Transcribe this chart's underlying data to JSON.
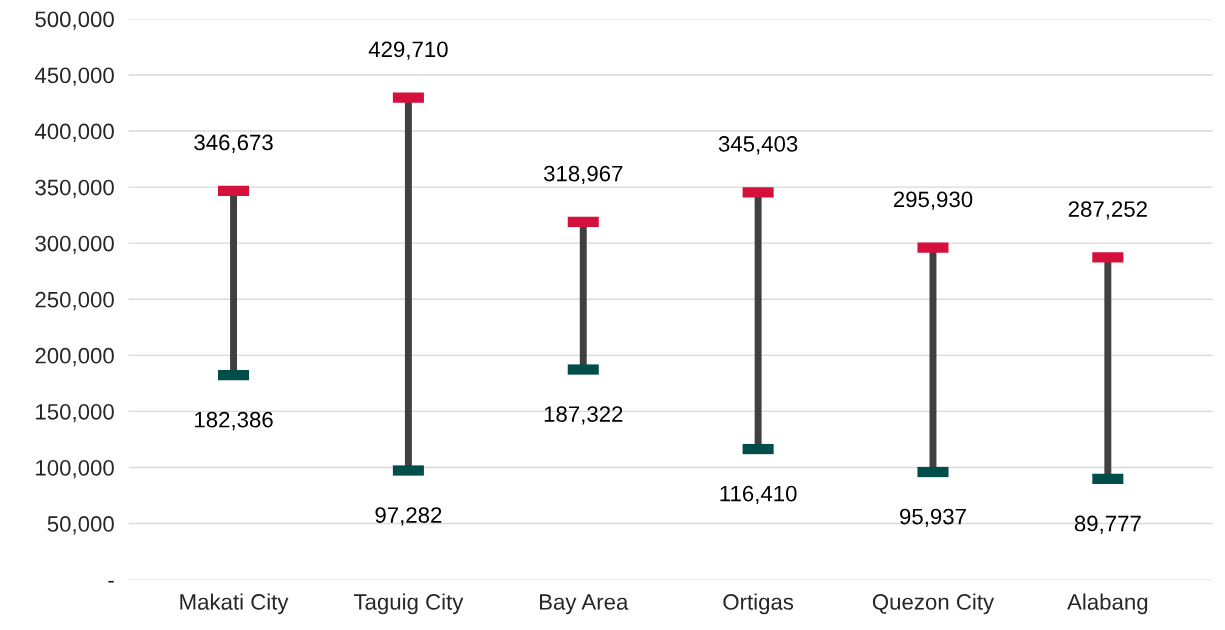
{
  "chart_data": {
    "type": "scatter",
    "categories": [
      "Makati City",
      "Taguig City",
      "Bay Area",
      "Ortigas",
      "Quezon City",
      "Alabang"
    ],
    "series": [
      {
        "color": "#d5103c",
        "values": [
          346673,
          429710,
          318967,
          345403,
          295930,
          287252
        ],
        "value_labels": [
          "346,673",
          "429,710",
          "318,967",
          "345,403",
          "295,930",
          "287,252"
        ]
      },
      {
        "color": "#004d4a",
        "values": [
          182386,
          97282,
          187322,
          116410,
          95937,
          89777
        ],
        "value_labels": [
          "182,386",
          "97,282",
          "187,322",
          "116,410",
          "95,937",
          "89,777"
        ]
      }
    ],
    "ylim": [
      0,
      500000
    ],
    "yticks": [
      {
        "value": 0,
        "label": "-"
      },
      {
        "value": 50000,
        "label": "50,000"
      },
      {
        "value": 100000,
        "label": "100,000"
      },
      {
        "value": 150000,
        "label": "150,000"
      },
      {
        "value": 200000,
        "label": "200,000"
      },
      {
        "value": 250000,
        "label": "250,000"
      },
      {
        "value": 300000,
        "label": "300,000"
      },
      {
        "value": 350000,
        "label": "350,000"
      },
      {
        "value": 400000,
        "label": "400,000"
      },
      {
        "value": 450000,
        "label": "450,000"
      },
      {
        "value": 500000,
        "label": "500,000"
      }
    ],
    "grid": "y",
    "legend": false
  }
}
